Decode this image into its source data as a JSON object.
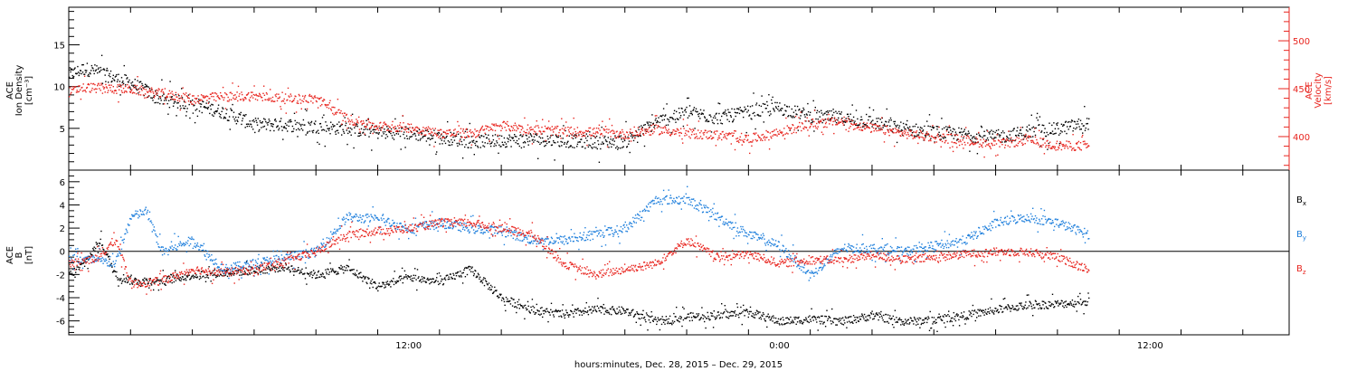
{
  "x_axis": {
    "title": "hours:minutes, Dec. 28, 2015 – Dec. 29, 2015",
    "ticks": [
      {
        "label": "12:00",
        "hour": 12
      },
      {
        "label": "0:00",
        "hour": 24
      },
      {
        "label": "12:00",
        "hour": 36
      }
    ],
    "range_hours": [
      1,
      40.5
    ]
  },
  "colors": {
    "black": "#000000",
    "red": "#e8251f",
    "blue": "#1e7fdc"
  },
  "chart_data": [
    {
      "type": "scatter",
      "panel": "plasma",
      "ylabel_left": [
        "ACE",
        "Ion Density",
        "[cm⁻³]"
      ],
      "ylabel_right": [
        "ACE",
        "Velocity",
        "[km/s]"
      ],
      "left_ticks": [
        "5",
        "10",
        "15"
      ],
      "right_ticks": [
        "400",
        "450",
        "500"
      ],
      "ylim_left": [
        0,
        19.5
      ],
      "ylim_right": [
        365,
        535
      ],
      "series": [
        {
          "name": "Ion Density",
          "axis": "left",
          "color": "black",
          "x": [
            1.0,
            1.5,
            2.0,
            2.5,
            3.0,
            4.0,
            5.0,
            6.0,
            7.0,
            8.0,
            9.0,
            10.0,
            11.0,
            12.0,
            13.0,
            14.0,
            15.0,
            16.0,
            17.0,
            18.0,
            19.0,
            20.0,
            21.0,
            22.0,
            23.0,
            24.0,
            25.0,
            26.0,
            27.0,
            28.0,
            29.0,
            30.0,
            31.0,
            32.0,
            33.0,
            34.0
          ],
          "y": [
            11.5,
            12.2,
            11.8,
            11.0,
            10.5,
            8.5,
            8.0,
            7.0,
            5.5,
            5.5,
            5.3,
            5.0,
            4.6,
            4.5,
            4.0,
            3.5,
            3.6,
            3.8,
            3.6,
            3.4,
            3.5,
            5.8,
            7.0,
            6.3,
            7.0,
            7.5,
            6.5,
            6.3,
            5.8,
            5.0,
            4.6,
            4.3,
            4.0,
            4.6,
            5.0,
            5.7
          ],
          "jitter": 0.8
        },
        {
          "name": "Velocity",
          "axis": "right",
          "color": "red",
          "x": [
            1.0,
            1.5,
            2.0,
            3.0,
            4.0,
            5.0,
            6.0,
            7.0,
            8.0,
            9.0,
            10.0,
            11.0,
            12.0,
            13.0,
            14.0,
            15.0,
            16.0,
            17.0,
            18.0,
            19.0,
            20.0,
            21.0,
            22.0,
            23.0,
            24.0,
            25.0,
            26.0,
            27.0,
            28.0,
            29.0,
            30.0,
            31.0,
            32.0,
            33.0,
            34.0
          ],
          "y": [
            447,
            452,
            451,
            450,
            445,
            440,
            442,
            443,
            440,
            440,
            419,
            411,
            410,
            404,
            404,
            412,
            408,
            406,
            405,
            403,
            408,
            404,
            402,
            398,
            405,
            414,
            416,
            409,
            404,
            400,
            397,
            392,
            397,
            391,
            391
          ],
          "jitter": 5
        }
      ]
    },
    {
      "type": "scatter",
      "panel": "magnetic",
      "ylabel_left": [
        "ACE",
        "B",
        "[nT]"
      ],
      "left_ticks": [
        "-6",
        "-4",
        "-2",
        "0",
        "2",
        "4",
        "6"
      ],
      "ylim": [
        -7.2,
        7.0
      ],
      "zero_line": true,
      "legend": [
        {
          "label": "B",
          "sub": "x",
          "color": "black"
        },
        {
          "label": "B",
          "sub": "y",
          "color": "blue"
        },
        {
          "label": "B",
          "sub": "z",
          "color": "red"
        }
      ],
      "series": [
        {
          "name": "Bx",
          "color": "black",
          "x": [
            1.0,
            1.5,
            2.0,
            2.5,
            3.0,
            4.0,
            5.0,
            6.0,
            7.0,
            8.0,
            9.0,
            10.0,
            11.0,
            12.0,
            13.0,
            14.0,
            15.0,
            16.0,
            17.0,
            18.0,
            19.0,
            20.0,
            21.0,
            22.0,
            23.0,
            24.0,
            25.0,
            26.0,
            27.0,
            28.0,
            29.0,
            30.0,
            31.0,
            32.0,
            33.0,
            34.0
          ],
          "y": [
            -2.0,
            -1.0,
            1.0,
            -2.0,
            -2.5,
            -2.5,
            -2.0,
            -1.8,
            -1.6,
            -1.3,
            -2.0,
            -1.4,
            -3.0,
            -2.2,
            -2.6,
            -1.5,
            -4.0,
            -5.0,
            -5.4,
            -5.0,
            -5.1,
            -6.0,
            -5.6,
            -5.5,
            -5.2,
            -6.0,
            -5.8,
            -6.0,
            -5.5,
            -6.0,
            -5.9,
            -5.5,
            -5.0,
            -4.6,
            -4.5,
            -4.3
          ],
          "jitter": 0.35
        },
        {
          "name": "By",
          "color": "blue",
          "x": [
            1.0,
            2.0,
            2.5,
            3.0,
            3.5,
            4.0,
            5.0,
            6.0,
            7.0,
            8.0,
            9.0,
            10.0,
            11.0,
            12.0,
            13.0,
            14.0,
            15.0,
            16.0,
            17.0,
            18.0,
            19.0,
            20.0,
            21.0,
            22.0,
            23.0,
            24.0,
            25.0,
            26.0,
            27.0,
            28.0,
            29.0,
            30.0,
            31.0,
            32.0,
            33.0,
            34.0
          ],
          "y": [
            -0.5,
            -0.8,
            -1.0,
            3.0,
            3.5,
            0.0,
            1.0,
            -1.5,
            -1.0,
            -0.5,
            0.0,
            3.0,
            2.8,
            2.0,
            2.5,
            2.0,
            1.8,
            1.0,
            1.0,
            1.5,
            2.0,
            4.5,
            4.5,
            3.0,
            1.5,
            0.5,
            -2.0,
            0.3,
            0.3,
            0.0,
            0.5,
            1.0,
            2.5,
            3.0,
            2.5,
            1.5
          ],
          "jitter": 0.4
        },
        {
          "name": "Bz",
          "color": "red",
          "x": [
            1.0,
            2.0,
            2.5,
            3.0,
            4.0,
            5.0,
            6.0,
            7.0,
            8.0,
            9.0,
            10.0,
            11.0,
            12.0,
            13.0,
            14.0,
            15.0,
            16.0,
            17.0,
            18.0,
            19.0,
            20.0,
            21.0,
            22.0,
            23.0,
            24.0,
            25.0,
            26.0,
            27.0,
            28.0,
            29.0,
            30.0,
            31.0,
            32.0,
            33.0,
            34.0
          ],
          "y": [
            -1.0,
            -0.5,
            1.2,
            -2.8,
            -2.5,
            -1.5,
            -1.8,
            -1.5,
            -0.8,
            0.0,
            1.5,
            1.8,
            2.0,
            2.5,
            2.5,
            2.0,
            1.5,
            -1.0,
            -2.0,
            -1.5,
            -1.0,
            1.0,
            -0.5,
            -0.2,
            -1.0,
            -0.7,
            -0.7,
            -0.3,
            -0.7,
            -0.5,
            -0.2,
            0.0,
            0.0,
            -0.5,
            -1.5
          ],
          "jitter": 0.35
        }
      ]
    }
  ]
}
